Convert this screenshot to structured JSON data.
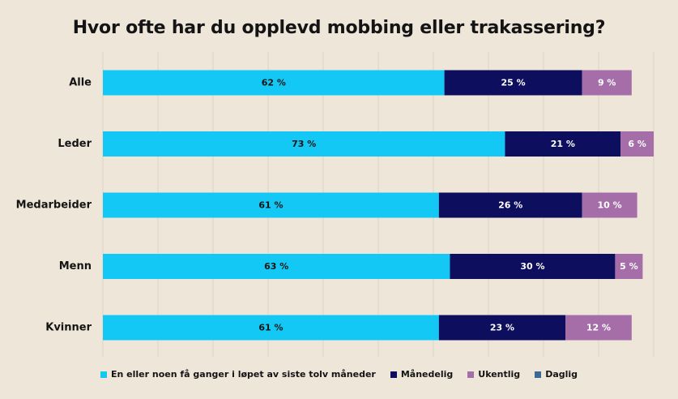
{
  "chart_data": {
    "type": "bar",
    "orientation": "horizontal",
    "stacked": true,
    "title": "Hvor ofte har du opplevd mobbing eller trakassering?",
    "categories": [
      "Alle",
      "Leder",
      "Medarbeider",
      "Menn",
      "Kvinner"
    ],
    "xlim": [
      0,
      100
    ],
    "grid": true,
    "legend_position": "bottom",
    "series": [
      {
        "name": "En eller noen få ganger i løpet av siste tolv måneder",
        "color": "#14c8f5",
        "label_color": "#141414",
        "values": [
          62,
          73,
          61,
          63,
          61
        ],
        "labels": [
          "62 %",
          "73 %",
          "61 %",
          "63 %",
          "61 %"
        ]
      },
      {
        "name": "Månedelig",
        "color": "#0d0f5e",
        "label_color": "#ffffff",
        "values": [
          25,
          21,
          26,
          30,
          23
        ],
        "labels": [
          "25 %",
          "21 %",
          "26 %",
          "30 %",
          "23 %"
        ]
      },
      {
        "name": "Ukentlig",
        "color": "#a56ea8",
        "label_color": "#ffffff",
        "values": [
          9,
          6,
          10,
          5,
          12
        ],
        "labels": [
          "9 %",
          "6 %",
          "10 %",
          "5 %",
          "12 %"
        ]
      },
      {
        "name": "Daglig",
        "color": "#3b6a94",
        "label_color": "#ffffff",
        "values": [
          0,
          0,
          0,
          0,
          0
        ],
        "labels": [
          "",
          "",
          "",
          "",
          ""
        ]
      }
    ]
  }
}
